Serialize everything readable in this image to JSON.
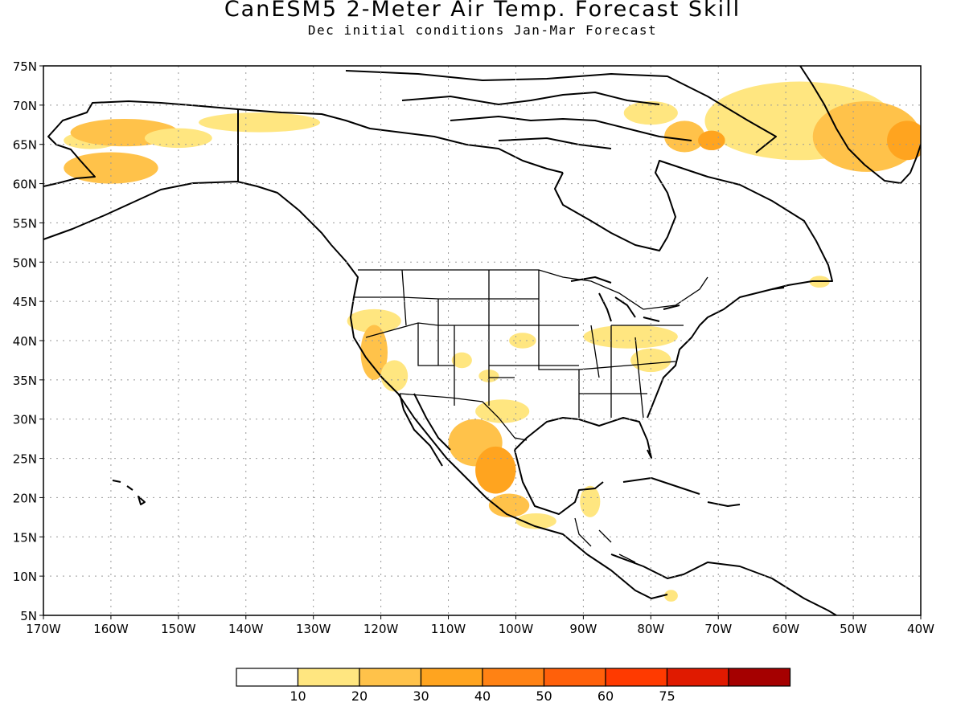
{
  "title": "CanESM5 2-Meter Air Temp. Forecast Skill",
  "subtitle": "Dec initial conditions  Jan-Mar Forecast",
  "map": {
    "region": "North America",
    "projection": "lat-lon",
    "lon_range": [
      -170,
      -40
    ],
    "lat_range": [
      5,
      75
    ],
    "lat_ticks": [
      "5N",
      "10N",
      "15N",
      "20N",
      "25N",
      "30N",
      "35N",
      "40N",
      "45N",
      "50N",
      "55N",
      "60N",
      "65N",
      "70N",
      "75N"
    ],
    "lon_ticks": [
      "170W",
      "160W",
      "150W",
      "140W",
      "130W",
      "120W",
      "110W",
      "100W",
      "90W",
      "80W",
      "70W",
      "60W",
      "50W",
      "40W"
    ],
    "gridlines": "dotted"
  },
  "colorbar": {
    "colors": [
      "#ffffff",
      "#ffe680",
      "#ffc24a",
      "#ffa41f",
      "#ff8214",
      "#ff600a",
      "#ff3a00",
      "#e01a00",
      "#a50000"
    ],
    "labels": [
      "10",
      "20",
      "30",
      "40",
      "50",
      "60",
      "75"
    ]
  },
  "shading": [
    {
      "lon": -163,
      "lat": 65.5,
      "w": 8,
      "h": 2.2,
      "level": 1
    },
    {
      "lon": -158,
      "lat": 66.5,
      "w": 16,
      "h": 3.5,
      "level": 2
    },
    {
      "lon": -150,
      "lat": 65.8,
      "w": 10,
      "h": 2.5,
      "level": 1
    },
    {
      "lon": -138,
      "lat": 67.8,
      "w": 18,
      "h": 2.5,
      "level": 1
    },
    {
      "lon": -160,
      "lat": 62,
      "w": 14,
      "h": 4,
      "level": 2
    },
    {
      "lon": -58,
      "lat": 68,
      "w": 28,
      "h": 10,
      "level": 1
    },
    {
      "lon": -48,
      "lat": 66,
      "w": 16,
      "h": 9,
      "level": 2
    },
    {
      "lon": -42,
      "lat": 65.5,
      "w": 6,
      "h": 5,
      "level": 3
    },
    {
      "lon": -80,
      "lat": 69,
      "w": 8,
      "h": 3,
      "level": 1
    },
    {
      "lon": -75,
      "lat": 66,
      "w": 6,
      "h": 4,
      "level": 2
    },
    {
      "lon": -71,
      "lat": 65.5,
      "w": 4,
      "h": 2.5,
      "level": 3
    },
    {
      "lon": -121,
      "lat": 42.5,
      "w": 8,
      "h": 3,
      "level": 1
    },
    {
      "lon": -121,
      "lat": 38.5,
      "w": 4,
      "h": 7,
      "level": 2
    },
    {
      "lon": -118,
      "lat": 35.5,
      "w": 4,
      "h": 4,
      "level": 1
    },
    {
      "lon": -108,
      "lat": 37.5,
      "w": 3,
      "h": 2,
      "level": 1
    },
    {
      "lon": -99,
      "lat": 40,
      "w": 4,
      "h": 2,
      "level": 1
    },
    {
      "lon": -104,
      "lat": 35.5,
      "w": 3,
      "h": 1.6,
      "level": 1
    },
    {
      "lon": -83,
      "lat": 40.5,
      "w": 14,
      "h": 3,
      "level": 1
    },
    {
      "lon": -80,
      "lat": 37.5,
      "w": 6,
      "h": 3,
      "level": 1
    },
    {
      "lon": -102,
      "lat": 31,
      "w": 8,
      "h": 3,
      "level": 1
    },
    {
      "lon": -106,
      "lat": 27,
      "w": 8,
      "h": 6,
      "level": 2
    },
    {
      "lon": -103,
      "lat": 23.5,
      "w": 6,
      "h": 6,
      "level": 3
    },
    {
      "lon": -101,
      "lat": 19,
      "w": 6,
      "h": 3,
      "level": 2
    },
    {
      "lon": -89,
      "lat": 19.5,
      "w": 3,
      "h": 4,
      "level": 1
    },
    {
      "lon": -97,
      "lat": 17,
      "w": 6,
      "h": 2,
      "level": 1
    },
    {
      "lon": -77,
      "lat": 7.5,
      "w": 2,
      "h": 1.5,
      "level": 1
    },
    {
      "lon": -55,
      "lat": 47.5,
      "w": 3,
      "h": 1.5,
      "level": 1
    }
  ]
}
